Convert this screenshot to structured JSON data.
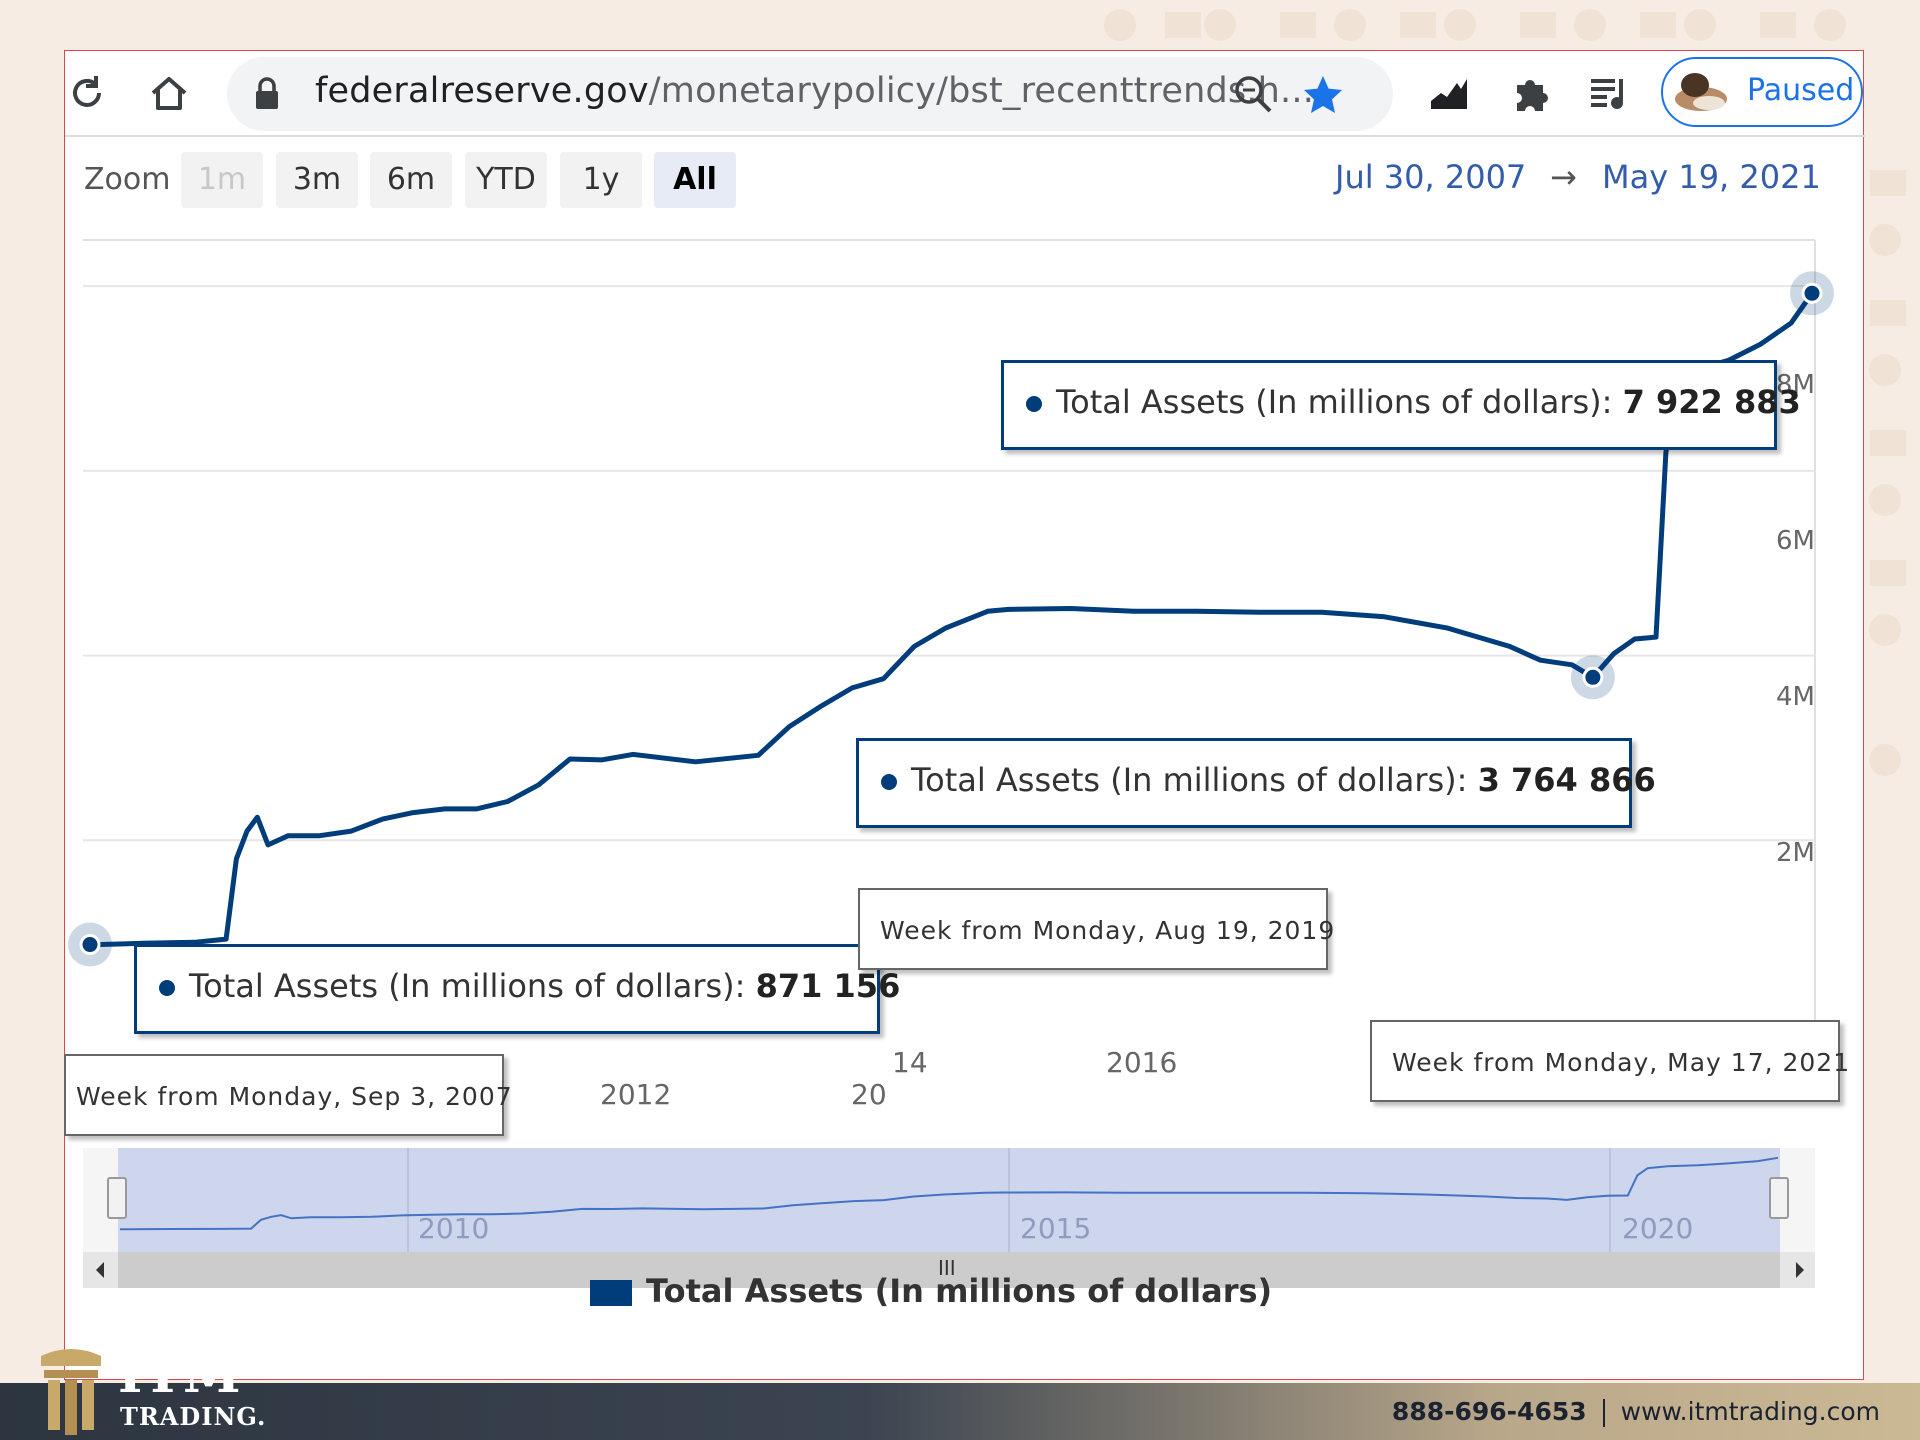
{
  "browser": {
    "url_host": "federalreserve.gov",
    "url_path": "/monetarypolicy/bst_recenttrends.h...",
    "profile_label": "Paused",
    "icons": [
      "reload-icon",
      "home-icon",
      "lock-icon",
      "zoom-icon",
      "bookmark-star-icon",
      "chart-extension-icon",
      "extensions-puzzle-icon",
      "media-queue-icon"
    ]
  },
  "zoom": {
    "label": "Zoom",
    "buttons": [
      "1m",
      "3m",
      "6m",
      "YTD",
      "1y",
      "All"
    ],
    "selected": "All",
    "disabled": "1m"
  },
  "range": {
    "from": "Jul 30, 2007",
    "arrow": "→",
    "to": "May 19, 2021"
  },
  "tooltips": {
    "top": {
      "label": "Total Assets (In millions of dollars): ",
      "value": "7 922 883",
      "date": "Week from Monday, May 17, 2021"
    },
    "mid": {
      "label": "Total Assets (In millions of dollars): ",
      "value": "3 764 866",
      "date": "Week from Monday, Aug 19, 2019"
    },
    "low": {
      "label": "Total Assets (In millions of dollars): ",
      "value": "871 156",
      "date": "Week from Monday, Sep 3, 2007"
    }
  },
  "navigator_labels": [
    "2010",
    "2015",
    "2020"
  ],
  "navigator_handle": "III",
  "legend_label": "Total Assets (In millions of dollars)",
  "colors": {
    "series": "#003d7a",
    "navigator_fill": "#cdd6ec",
    "accent": "#1a73e8"
  },
  "footer": {
    "logo_main": "ITM",
    "logo_sub": "TRADING.",
    "phone": "888-696-4653",
    "website": "www.itmtrading.com"
  },
  "chart_data": {
    "type": "line",
    "series": [
      {
        "name": "Total Assets (In millions of dollars)",
        "x": [
          "2007-08",
          "2007-09",
          "2008-01",
          "2008-06",
          "2008-09",
          "2008-10",
          "2008-11",
          "2008-12",
          "2009-01",
          "2009-03",
          "2009-06",
          "2009-09",
          "2009-12",
          "2010-03",
          "2010-06",
          "2010-09",
          "2010-12",
          "2011-03",
          "2011-06",
          "2011-09",
          "2011-12",
          "2012-06",
          "2012-12",
          "2013-03",
          "2013-06",
          "2013-09",
          "2013-12",
          "2014-03",
          "2014-06",
          "2014-10",
          "2014-12",
          "2015-06",
          "2015-12",
          "2016-06",
          "2016-12",
          "2017-06",
          "2017-12",
          "2018-06",
          "2018-12",
          "2019-03",
          "2019-06",
          "2019-08",
          "2019-10",
          "2019-12",
          "2020-02",
          "2020-03",
          "2020-04",
          "2020-06",
          "2020-09",
          "2020-12",
          "2021-03",
          "2021-05"
        ],
        "y": [
          871156,
          871156,
          885000,
          895000,
          930000,
          1800000,
          2100000,
          2250000,
          1950000,
          2050000,
          2050000,
          2100000,
          2230000,
          2300000,
          2340000,
          2340000,
          2420000,
          2600000,
          2880000,
          2870000,
          2930000,
          2850000,
          2920000,
          3230000,
          3450000,
          3650000,
          3750000,
          4100000,
          4300000,
          4480000,
          4500000,
          4510000,
          4480000,
          4480000,
          4470000,
          4470000,
          4420000,
          4300000,
          4100000,
          3950000,
          3900000,
          3764866,
          4020000,
          4180000,
          4200000,
          6200000,
          6900000,
          7100000,
          7200000,
          7370000,
          7600000,
          7922883
        ]
      }
    ],
    "x_tick_labels": [
      "2012",
      "14",
      "2016",
      "20"
    ],
    "y_tick_labels": [
      "2M",
      "4M",
      "6M",
      "8M"
    ],
    "ylim": [
      0,
      8500000
    ],
    "grid": true,
    "legend": "bottom-center"
  }
}
